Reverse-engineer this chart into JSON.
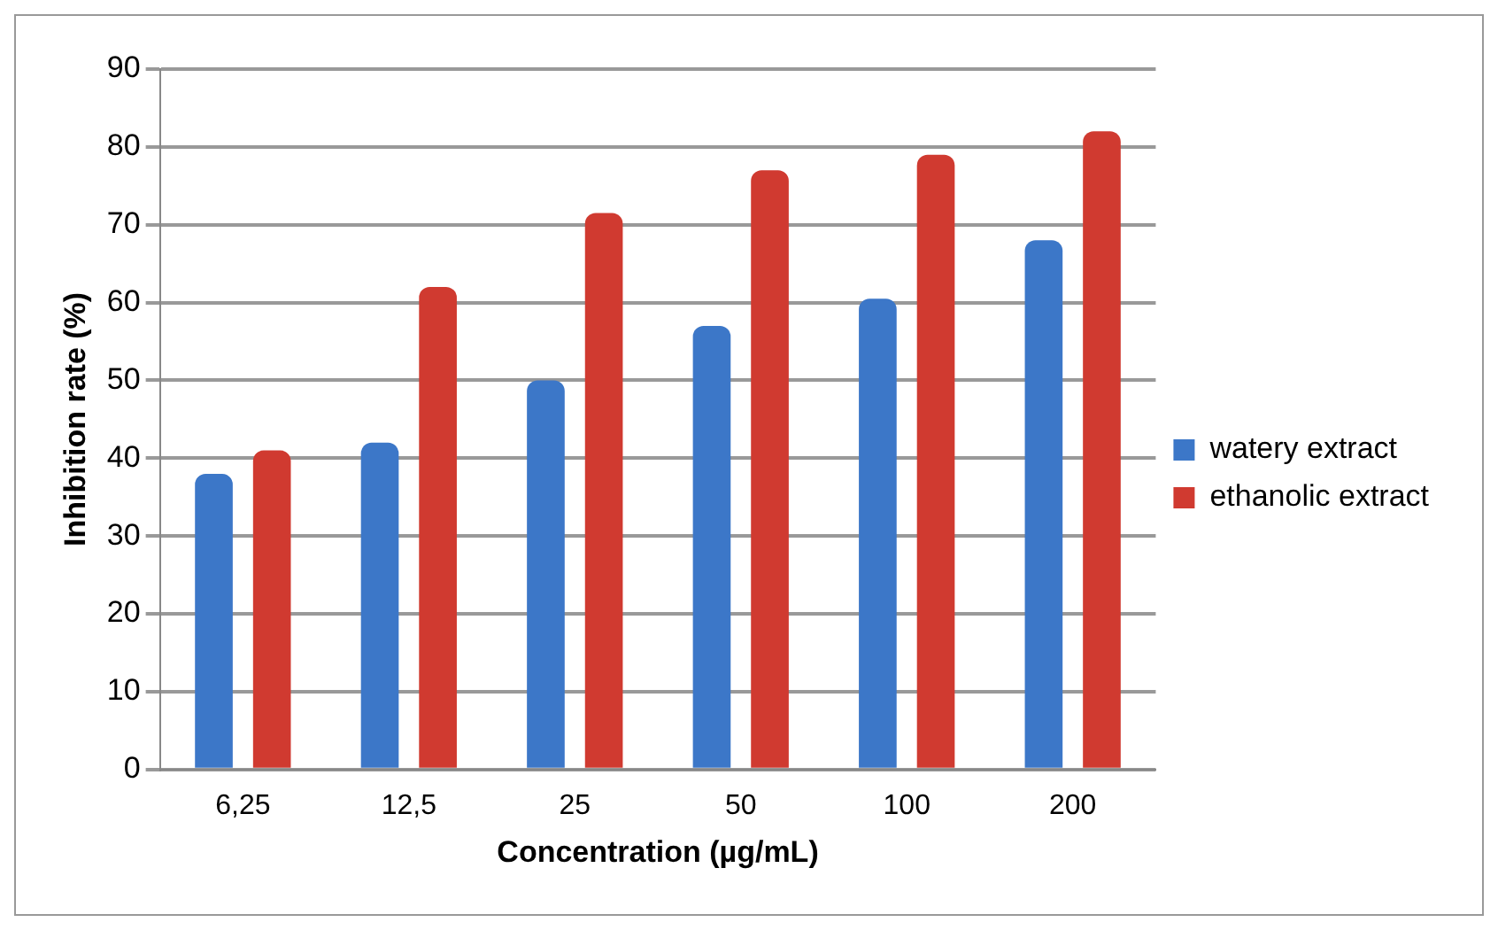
{
  "chart_data": {
    "type": "bar",
    "xlabel": "Concentration (µg/mL)",
    "ylabel": "Inhibition rate (%)",
    "categories": [
      "6,25",
      "12,5",
      "25",
      "50",
      "100",
      "200"
    ],
    "series": [
      {
        "name": "watery extract",
        "color": "#3c77c8",
        "values": [
          38,
          42,
          50,
          57,
          60.5,
          68
        ]
      },
      {
        "name": "ethanolic extract",
        "color": "#d03a30",
        "values": [
          41,
          62,
          71.5,
          77,
          79,
          82
        ]
      }
    ],
    "ylim": [
      0,
      90
    ],
    "yticks": [
      0,
      10,
      20,
      30,
      40,
      50,
      60,
      70,
      80,
      90
    ],
    "grid": "y",
    "legend": "right"
  }
}
